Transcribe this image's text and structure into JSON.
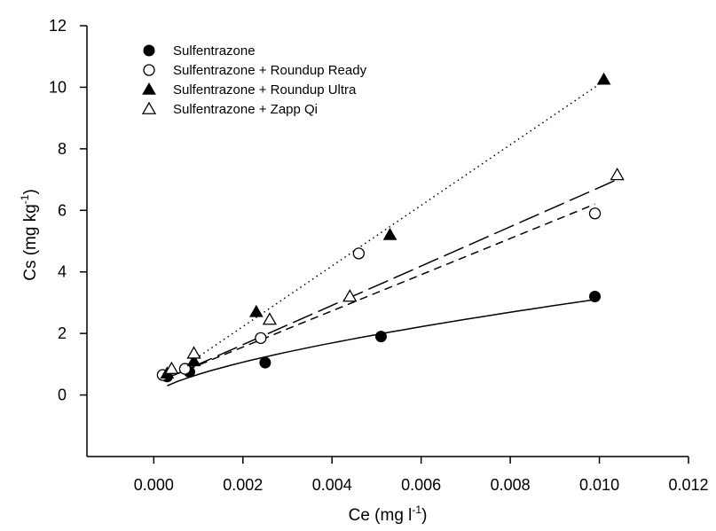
{
  "chart_data": {
    "type": "scatter",
    "xlabel": "Ce (mg l-1)",
    "ylabel": "Cs (mg kg-1)",
    "xlabel_parts": [
      "Ce (mg l",
      "-1",
      ")"
    ],
    "ylabel_parts": [
      "Cs (mg kg",
      "-1",
      ")"
    ],
    "xlim": [
      -0.0015,
      0.012
    ],
    "ylim": [
      -2,
      12
    ],
    "xticks": [
      0.0,
      0.002,
      0.004,
      0.006,
      0.008,
      0.01,
      0.012
    ],
    "xtick_labels": [
      "0.000",
      "0.002",
      "0.004",
      "0.006",
      "0.008",
      "0.010",
      "0.012"
    ],
    "yticks": [
      0,
      2,
      4,
      6,
      8,
      10,
      12
    ],
    "ytick_labels": [
      "0",
      "2",
      "4",
      "6",
      "8",
      "10",
      "12"
    ],
    "grid": false,
    "legend_position": "top-left",
    "series": [
      {
        "name": "Sulfentrazone",
        "marker": "filled-circle",
        "line_style": "solid",
        "x": [
          0.0003,
          0.0008,
          0.0025,
          0.0051,
          0.0099
        ],
        "y": [
          0.6,
          0.75,
          1.05,
          1.9,
          3.2
        ],
        "fit_x": [
          0.0003,
          0.0099
        ],
        "fit_y": [
          0.3,
          3.1
        ]
      },
      {
        "name": "Sulfentrazone + Roundup Ready",
        "marker": "open-circle",
        "line_style": "short-dash",
        "x": [
          0.0002,
          0.0007,
          0.0024,
          0.0046,
          0.0099
        ],
        "y": [
          0.65,
          0.85,
          1.85,
          4.6,
          5.9
        ],
        "fit_x": [
          0.0002,
          0.0099
        ],
        "fit_y": [
          0.5,
          6.2
        ]
      },
      {
        "name": "Sulfentrazone + Roundup Ultra",
        "marker": "filled-triangle",
        "line_style": "dotted",
        "x": [
          0.0003,
          0.0009,
          0.0023,
          0.0053,
          0.0101
        ],
        "y": [
          0.7,
          1.1,
          2.7,
          5.2,
          10.25
        ],
        "fit_x": [
          0.0003,
          0.0101
        ],
        "fit_y": [
          0.55,
          10.2
        ]
      },
      {
        "name": "Sulfentrazone + Zapp Qi",
        "marker": "open-triangle",
        "line_style": "long-dash",
        "x": [
          0.0004,
          0.0009,
          0.0026,
          0.0044,
          0.0104
        ],
        "y": [
          0.85,
          1.35,
          2.45,
          3.2,
          7.15
        ],
        "fit_x": [
          0.0003,
          0.0104
        ],
        "fit_y": [
          0.55,
          7.0
        ]
      }
    ]
  }
}
